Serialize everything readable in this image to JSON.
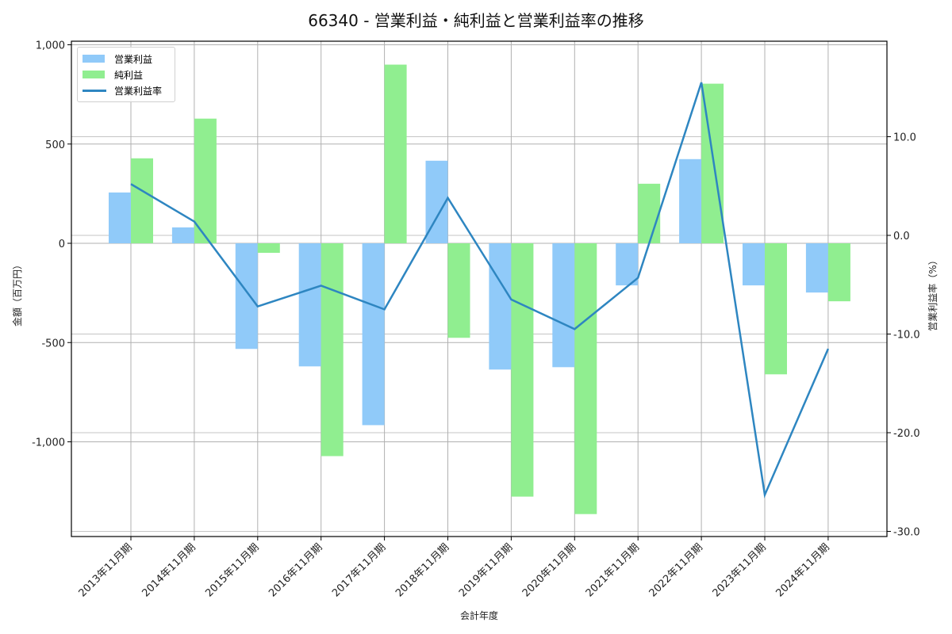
{
  "title": "66340 - 営業利益・純利益と営業利益率の推移",
  "legend": {
    "items": [
      {
        "label": "営業利益",
        "kind": "bar",
        "color": "#90caf9"
      },
      {
        "label": "純利益",
        "kind": "bar",
        "color": "#90ee90"
      },
      {
        "label": "営業利益率",
        "kind": "line",
        "color": "#2e86c1"
      }
    ]
  },
  "axes": {
    "xlabel": "会計年度",
    "ylabel_left": "金額（百万円）",
    "ylabel_right": "営業利益率（%）",
    "left_ticks": [
      "1,000",
      "500",
      "0",
      "-500",
      "-1,000"
    ],
    "right_ticks": [
      "10.0",
      "0.0",
      "-10.0",
      "-20.0",
      "-30.0"
    ]
  },
  "chart_data": {
    "type": "bar",
    "title": "66340 - 営業利益・純利益と営業利益率の推移",
    "xlabel": "会計年度",
    "ylabel": "金額（百万円）",
    "ylabel_right": "営業利益率（%）",
    "categories": [
      "2013年11月期",
      "2014年11月期",
      "2015年11月期",
      "2016年11月期",
      "2017年11月期",
      "2018年11月期",
      "2019年11月期",
      "2020年11月期",
      "2021年11月期",
      "2022年11月期",
      "2023年11月期",
      "2024年11月期"
    ],
    "series": [
      {
        "name": "営業利益",
        "type": "bar",
        "axis": "left",
        "color": "#90caf9",
        "values": [
          256,
          80,
          -532,
          -620,
          -916,
          416,
          -636,
          -624,
          -212,
          424,
          -212,
          -248
        ]
      },
      {
        "name": "純利益",
        "type": "bar",
        "axis": "left",
        "color": "#90ee90",
        "values": [
          428,
          628,
          -48,
          -1072,
          900,
          -476,
          -1276,
          -1364,
          300,
          804,
          -660,
          -292
        ]
      },
      {
        "name": "営業利益率",
        "type": "line",
        "axis": "right",
        "color": "#2e86c1",
        "values": [
          5.2,
          1.4,
          -7.2,
          -5.1,
          -7.5,
          3.8,
          -6.5,
          -9.5,
          -4.3,
          15.5,
          -26.3,
          -11.5
        ]
      }
    ],
    "ylim": [
      -1475,
      1020
    ],
    "ylim_right": [
      -30.2,
      19.9
    ],
    "yticks_left": [
      1000,
      500,
      0,
      -500,
      -1000
    ],
    "yticks_right": [
      10.0,
      0.0,
      -10.0,
      -20.0,
      -30.0
    ],
    "grid": true,
    "legend_position": "upper left"
  }
}
